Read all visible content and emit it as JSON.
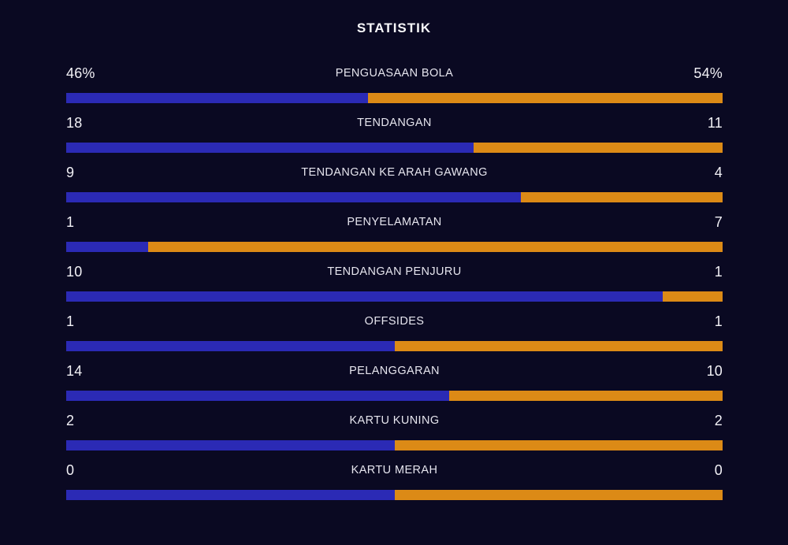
{
  "title": "STATISTIK",
  "colors": {
    "background": "#0a0922",
    "home_bar": "#2b2ab5",
    "away_bar": "#dc8a16",
    "title_text": "#f7f7fa",
    "value_text": "#f2f1f6",
    "label_text": "#e6e5ee"
  },
  "stats": [
    {
      "label": "PENGUASAAN BOLA",
      "home": 46,
      "away": 54,
      "home_display": "46%",
      "away_display": "54%"
    },
    {
      "label": "TENDANGAN",
      "home": 18,
      "away": 11,
      "home_display": "18",
      "away_display": "11"
    },
    {
      "label": "TENDANGAN KE ARAH GAWANG",
      "home": 9,
      "away": 4,
      "home_display": "9",
      "away_display": "4"
    },
    {
      "label": "PENYELAMATAN",
      "home": 1,
      "away": 7,
      "home_display": "1",
      "away_display": "7"
    },
    {
      "label": "TENDANGAN PENJURU",
      "home": 10,
      "away": 1,
      "home_display": "10",
      "away_display": "1"
    },
    {
      "label": "OFFSIDES",
      "home": 1,
      "away": 1,
      "home_display": "1",
      "away_display": "1"
    },
    {
      "label": "PELANGGARAN",
      "home": 14,
      "away": 10,
      "home_display": "14",
      "away_display": "10"
    },
    {
      "label": "KARTU KUNING",
      "home": 2,
      "away": 2,
      "home_display": "2",
      "away_display": "2"
    },
    {
      "label": "KARTU MERAH",
      "home": 0,
      "away": 0,
      "home_display": "0",
      "away_display": "0"
    }
  ],
  "chart_data": {
    "type": "bar",
    "subtype": "paired-horizontal-stacked-comparison",
    "title": "STATISTIK",
    "orientation": "horizontal",
    "categories": [
      "PENGUASAAN BOLA",
      "TENDANGAN",
      "TENDANGAN KE ARAH GAWANG",
      "PENYELAMATAN",
      "TENDANGAN PENJURU",
      "OFFSIDES",
      "PELANGGARAN",
      "KARTU KUNING",
      "KARTU MERAH"
    ],
    "series": [
      {
        "name": "home",
        "color": "#2b2ab5",
        "values": [
          46,
          18,
          9,
          1,
          10,
          1,
          14,
          2,
          0
        ]
      },
      {
        "name": "away",
        "color": "#dc8a16",
        "values": [
          54,
          11,
          4,
          7,
          1,
          1,
          10,
          2,
          0
        ]
      }
    ],
    "bar_fill_rule": "each bar filled left-to-right proportional to home/(home+away); 0 vs 0 renders 50/50",
    "grid": false,
    "legend": false
  }
}
